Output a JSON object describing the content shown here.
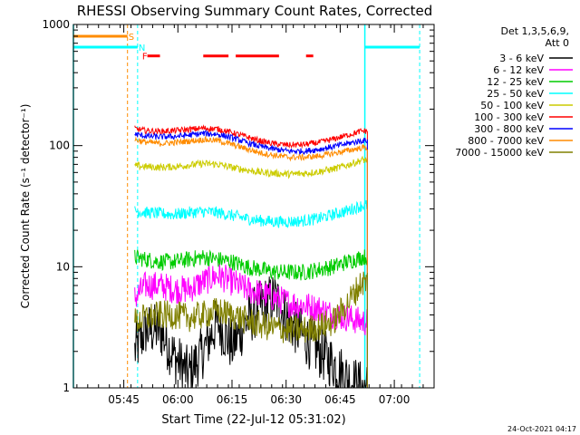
{
  "chart_data": {
    "type": "line",
    "title": "RHESSI Observing Summary Count Rates, Corrected",
    "xlabel": "Start Time (22-Jul-12 05:31:02)",
    "ylabel": "Corrected Count Rate (s⁻¹ detector⁻¹)",
    "y_scale": "log",
    "ylim": [
      1,
      1000
    ],
    "x_unit": "minutes after 05:31:02",
    "xlim": [
      0,
      100
    ],
    "x_ticks": [
      {
        "t": 13.97,
        "label": "05:45"
      },
      {
        "t": 28.97,
        "label": "06:00"
      },
      {
        "t": 43.97,
        "label": "06:15"
      },
      {
        "t": 58.97,
        "label": "06:30"
      },
      {
        "t": 73.97,
        "label": "06:45"
      },
      {
        "t": 88.97,
        "label": "07:00"
      }
    ],
    "y_ticks": [
      {
        "v": 1,
        "label": "1"
      },
      {
        "v": 10,
        "label": "10"
      },
      {
        "v": 100,
        "label": "100"
      },
      {
        "v": 1000,
        "label": "1000"
      }
    ],
    "legend": {
      "title_lines": [
        "Det 1,3,5,6,9,",
        "Att 0"
      ],
      "placement": "right"
    },
    "data_start": 17.0,
    "data_end": 81.5,
    "series": [
      {
        "name": "3 - 6 keV",
        "color": "#000000",
        "values": [
          [
            17.0,
            2.0
          ],
          [
            20,
            3
          ],
          [
            24,
            3
          ],
          [
            28,
            1.8
          ],
          [
            32,
            1.3
          ],
          [
            36,
            2.0
          ],
          [
            40,
            3.5
          ],
          [
            44,
            2.2
          ],
          [
            48,
            3.5
          ],
          [
            52,
            4.8
          ],
          [
            56,
            5.5
          ],
          [
            60,
            3.5
          ],
          [
            64,
            2.6
          ],
          [
            68,
            2.0
          ],
          [
            72,
            1.6
          ],
          [
            76,
            1.2
          ],
          [
            80,
            1.0
          ]
        ]
      },
      {
        "name": "6 - 12 keV",
        "color": "#ff00ff",
        "values": [
          [
            17.0,
            5.5
          ],
          [
            20,
            7.0
          ],
          [
            24,
            7.0
          ],
          [
            28,
            6.5
          ],
          [
            32,
            6.5
          ],
          [
            36,
            7.5
          ],
          [
            40,
            8.5
          ],
          [
            44,
            7.5
          ],
          [
            48,
            6.5
          ],
          [
            52,
            6.0
          ],
          [
            56,
            5.5
          ],
          [
            60,
            5.0
          ],
          [
            64,
            4.8
          ],
          [
            68,
            4.5
          ],
          [
            72,
            4.0
          ],
          [
            76,
            3.8
          ],
          [
            80,
            3.5
          ]
        ]
      },
      {
        "name": "12 - 25 keV",
        "color": "#00cc00",
        "values": [
          [
            17.0,
            12
          ],
          [
            20,
            11.5
          ],
          [
            24,
            11
          ],
          [
            28,
            11
          ],
          [
            32,
            11.5
          ],
          [
            36,
            12
          ],
          [
            40,
            11.5
          ],
          [
            44,
            11
          ],
          [
            48,
            10
          ],
          [
            52,
            9.5
          ],
          [
            56,
            9.0
          ],
          [
            60,
            9.0
          ],
          [
            64,
            9.0
          ],
          [
            68,
            9.5
          ],
          [
            72,
            10
          ],
          [
            76,
            11
          ],
          [
            80,
            12
          ]
        ]
      },
      {
        "name": "25 - 50 keV",
        "color": "#00ffff",
        "values": [
          [
            17.0,
            29
          ],
          [
            20,
            28
          ],
          [
            24,
            27.5
          ],
          [
            28,
            27
          ],
          [
            32,
            28
          ],
          [
            36,
            28.5
          ],
          [
            40,
            28
          ],
          [
            44,
            26.5
          ],
          [
            48,
            25
          ],
          [
            52,
            24
          ],
          [
            56,
            23.5
          ],
          [
            60,
            23.5
          ],
          [
            64,
            24
          ],
          [
            68,
            25
          ],
          [
            72,
            27
          ],
          [
            76,
            29
          ],
          [
            80,
            32
          ]
        ]
      },
      {
        "name": "50 - 100 keV",
        "color": "#cccc00",
        "values": [
          [
            17.0,
            68
          ],
          [
            20,
            67
          ],
          [
            24,
            66
          ],
          [
            28,
            67
          ],
          [
            32,
            69
          ],
          [
            36,
            71
          ],
          [
            40,
            70
          ],
          [
            44,
            66
          ],
          [
            48,
            63
          ],
          [
            52,
            60
          ],
          [
            56,
            59
          ],
          [
            60,
            58
          ],
          [
            64,
            59
          ],
          [
            68,
            61
          ],
          [
            72,
            64
          ],
          [
            76,
            69
          ],
          [
            80,
            76
          ]
        ]
      },
      {
        "name": "100 - 300 keV",
        "color": "#ff0000",
        "values": [
          [
            17.0,
            138
          ],
          [
            20,
            133
          ],
          [
            24,
            131
          ],
          [
            28,
            133
          ],
          [
            32,
            136
          ],
          [
            36,
            139
          ],
          [
            40,
            137
          ],
          [
            44,
            128
          ],
          [
            48,
            118
          ],
          [
            52,
            109
          ],
          [
            56,
            103
          ],
          [
            60,
            101
          ],
          [
            64,
            102
          ],
          [
            68,
            106
          ],
          [
            72,
            113
          ],
          [
            76,
            122
          ],
          [
            80,
            132
          ]
        ]
      },
      {
        "name": "300 - 800 keV",
        "color": "#0000ff",
        "values": [
          [
            17.0,
            124
          ],
          [
            20,
            120
          ],
          [
            24,
            118
          ],
          [
            28,
            119
          ],
          [
            32,
            122
          ],
          [
            36,
            126
          ],
          [
            40,
            124
          ],
          [
            44,
            116
          ],
          [
            48,
            106
          ],
          [
            52,
            98
          ],
          [
            56,
            93
          ],
          [
            60,
            90
          ],
          [
            64,
            90
          ],
          [
            68,
            93
          ],
          [
            72,
            98
          ],
          [
            76,
            104
          ],
          [
            80,
            110
          ]
        ]
      },
      {
        "name": "800 - 7000 keV",
        "color": "#ff8c00",
        "values": [
          [
            17.0,
            112
          ],
          [
            20,
            107
          ],
          [
            24,
            104
          ],
          [
            28,
            106
          ],
          [
            32,
            109
          ],
          [
            36,
            112
          ],
          [
            40,
            110
          ],
          [
            44,
            102
          ],
          [
            48,
            94
          ],
          [
            52,
            87
          ],
          [
            56,
            83
          ],
          [
            60,
            80
          ],
          [
            64,
            80
          ],
          [
            68,
            82
          ],
          [
            72,
            86
          ],
          [
            76,
            91
          ],
          [
            80,
            96
          ]
        ]
      },
      {
        "name": "7000 - 15000 keV",
        "color": "#808000",
        "values": [
          [
            17.0,
            3.5
          ],
          [
            20,
            3.8
          ],
          [
            24,
            4.0
          ],
          [
            28,
            4.0
          ],
          [
            32,
            3.8
          ],
          [
            36,
            4.0
          ],
          [
            40,
            4.3
          ],
          [
            44,
            4.0
          ],
          [
            48,
            3.6
          ],
          [
            52,
            3.3
          ],
          [
            56,
            3.1
          ],
          [
            60,
            3.0
          ],
          [
            64,
            3.0
          ],
          [
            68,
            3.2
          ],
          [
            72,
            3.5
          ],
          [
            76,
            5.0
          ],
          [
            80,
            7.5
          ]
        ]
      }
    ],
    "markers": [
      {
        "label": "S",
        "color": "#ff8c00",
        "line_style": "dashed",
        "t": 15.0,
        "y": 800,
        "bar_from": 0
      },
      {
        "label": "N",
        "color": "#00ffff",
        "line_style": "dashed",
        "t": 17.8,
        "y": 650,
        "bar_from": 0
      },
      {
        "label": "F",
        "color": "#ff0000",
        "line_style": "none",
        "t": 18.8,
        "y": 550
      }
    ],
    "saa_bars": [
      [
        20.5,
        24.0
      ],
      [
        36.0,
        43.0
      ],
      [
        45.0,
        57.0
      ],
      [
        64.5,
        66.5
      ]
    ],
    "saa_level": 550,
    "night_lines": [
      {
        "t": 0.0,
        "style": "solid"
      },
      {
        "t": 80.8,
        "style": "solid"
      },
      {
        "t": 96.0,
        "style": "dashed"
      }
    ],
    "night_bars": [
      [
        0.0,
        17.8
      ],
      [
        80.8,
        96.0
      ]
    ],
    "night_level": 650,
    "orange_bar": [
      0.0,
      15.0
    ],
    "orange_level": 800
  },
  "footer": {
    "timestamp": "24-Oct-2021 04:17"
  }
}
